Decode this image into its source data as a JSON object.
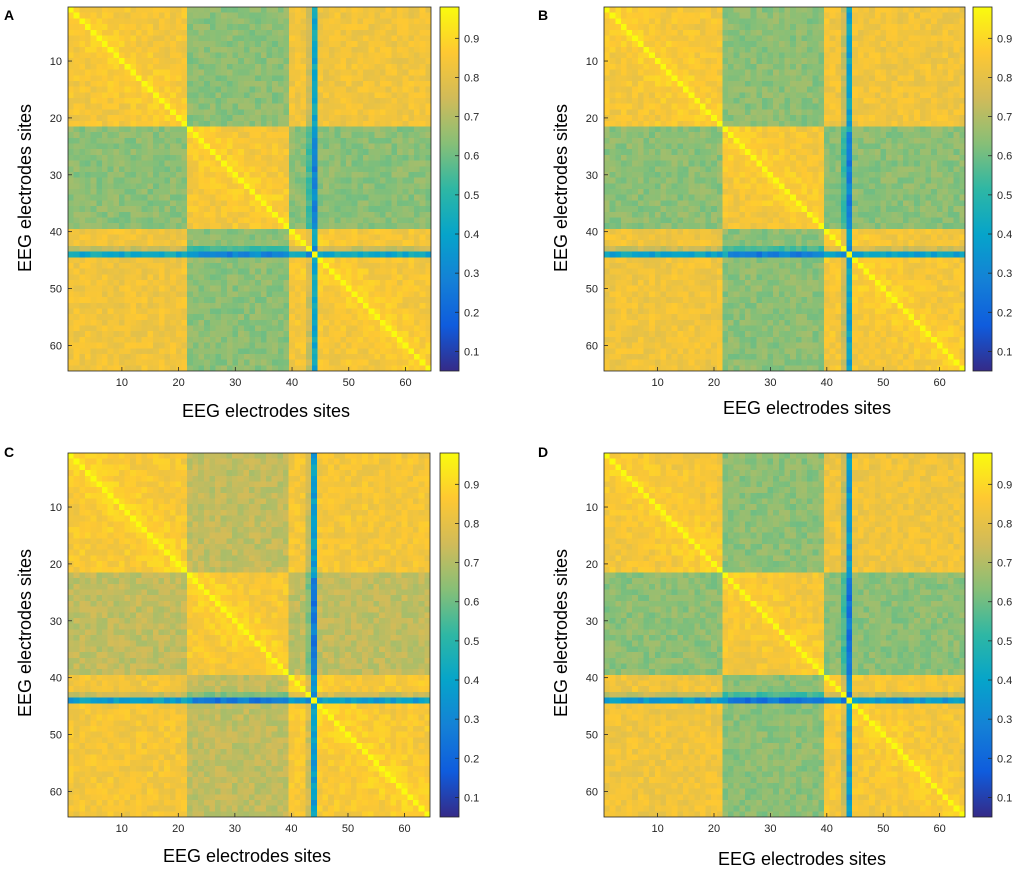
{
  "colorscale": {
    "name": "parula",
    "stops": [
      "#352a87",
      "#0f5cdd",
      "#1481d6",
      "#06a4ca",
      "#2eb7a4",
      "#87bf77",
      "#d1bb59",
      "#fec832",
      "#f9fb0e"
    ]
  },
  "chart_data": [
    {
      "panel": "A",
      "type": "heatmap",
      "xlabel": "EEG electrodes sites",
      "ylabel": "EEG electrodes sites",
      "xlim": [
        1,
        64
      ],
      "ylim": [
        1,
        64
      ],
      "x_ticks": [
        "10",
        "20",
        "30",
        "40",
        "50",
        "60"
      ],
      "y_ticks": [
        "10",
        "20",
        "30",
        "40",
        "50",
        "60"
      ],
      "colorbar": {
        "min": 0.05,
        "max": 0.98,
        "ticks": [
          "0.1",
          "0.2",
          "0.3",
          "0.4",
          "0.5",
          "0.6",
          "0.7",
          "0.8",
          "0.9"
        ]
      },
      "matrix_size": 64,
      "diagonal_value": 0.98,
      "base_value": 0.84,
      "block_boundaries": [
        22,
        40
      ],
      "anomalous_channels": [
        {
          "channel": 44,
          "value": 0.42
        }
      ],
      "notes": "Channels 22-39 form a lower-correlation block (~0.6-0.7) against others; channel 44 row/column strongly reduced"
    },
    {
      "panel": "B",
      "type": "heatmap",
      "xlabel": "EEG electrodes sites",
      "ylabel": "EEG electrodes sites",
      "xlim": [
        1,
        64
      ],
      "ylim": [
        1,
        64
      ],
      "x_ticks": [
        "10",
        "20",
        "30",
        "40",
        "50",
        "60"
      ],
      "y_ticks": [
        "10",
        "20",
        "30",
        "40",
        "50",
        "60"
      ],
      "colorbar": {
        "min": 0.05,
        "max": 0.98,
        "ticks": [
          "0.1",
          "0.2",
          "0.3",
          "0.4",
          "0.5",
          "0.6",
          "0.7",
          "0.8",
          "0.9"
        ]
      },
      "matrix_size": 64,
      "diagonal_value": 0.98,
      "base_value": 0.84,
      "block_boundaries": [
        22,
        40
      ],
      "anomalous_channels": [
        {
          "channel": 44,
          "value": 0.4
        }
      ],
      "notes": "Similar structure to A with slightly stronger off-block reduction"
    },
    {
      "panel": "C",
      "type": "heatmap",
      "xlabel": "EEG electrodes sites",
      "ylabel": "EEG electrodes sites",
      "xlim": [
        1,
        64
      ],
      "ylim": [
        1,
        64
      ],
      "x_ticks": [
        "10",
        "20",
        "30",
        "40",
        "50",
        "60"
      ],
      "y_ticks": [
        "10",
        "20",
        "30",
        "40",
        "50",
        "60"
      ],
      "colorbar": {
        "min": 0.05,
        "max": 0.98,
        "ticks": [
          "0.1",
          "0.2",
          "0.3",
          "0.4",
          "0.5",
          "0.6",
          "0.7",
          "0.8",
          "0.9"
        ]
      },
      "matrix_size": 64,
      "diagonal_value": 0.98,
      "base_value": 0.85,
      "block_boundaries": [
        22,
        40
      ],
      "anomalous_channels": [
        {
          "channel": 44,
          "value": 0.38
        }
      ],
      "notes": "Weaker block contrast; channel 44 reduced"
    },
    {
      "panel": "D",
      "type": "heatmap",
      "xlabel": "EEG electrodes sites",
      "ylabel": "EEG electrodes sites",
      "xlim": [
        1,
        64
      ],
      "ylim": [
        1,
        64
      ],
      "x_ticks": [
        "10",
        "20",
        "30",
        "40",
        "50",
        "60"
      ],
      "y_ticks": [
        "10",
        "20",
        "30",
        "40",
        "50",
        "60"
      ],
      "colorbar": {
        "min": 0.05,
        "max": 0.98,
        "ticks": [
          "0.1",
          "0.2",
          "0.3",
          "0.4",
          "0.5",
          "0.6",
          "0.7",
          "0.8",
          "0.9"
        ]
      },
      "matrix_size": 64,
      "diagonal_value": 0.98,
      "base_value": 0.84,
      "block_boundaries": [
        22,
        40
      ],
      "anomalous_channels": [
        {
          "channel": 44,
          "value": 0.36
        }
      ],
      "notes": "Strong block contrast similar to B"
    }
  ]
}
